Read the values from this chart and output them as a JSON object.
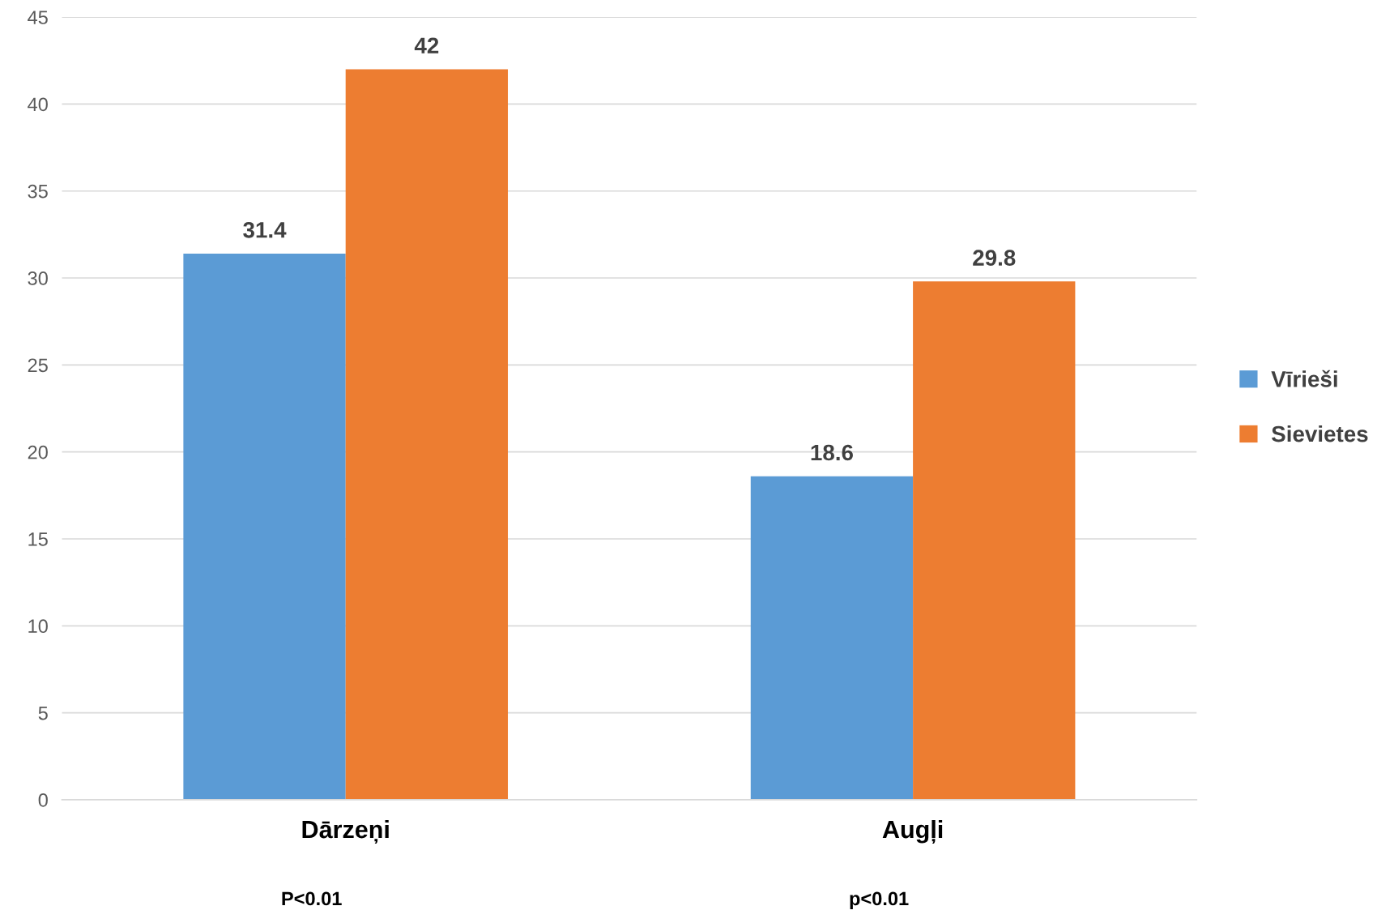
{
  "chart_data": {
    "type": "bar",
    "categories": [
      "Dārzeņi",
      "Augļi"
    ],
    "series": [
      {
        "name": "Vīrieši",
        "color": "#5b9bd5",
        "values": [
          31.4,
          18.6
        ]
      },
      {
        "name": "Sievietes",
        "color": "#ed7d31",
        "values": [
          42,
          29.8
        ]
      }
    ],
    "ylim": [
      0,
      45
    ],
    "yticks": [
      0,
      5,
      10,
      15,
      20,
      25,
      30,
      35,
      40,
      45
    ],
    "grid": "y",
    "legend": "right",
    "data_labels": true,
    "annotations": [
      "P<0.01",
      "p<0.01"
    ]
  }
}
